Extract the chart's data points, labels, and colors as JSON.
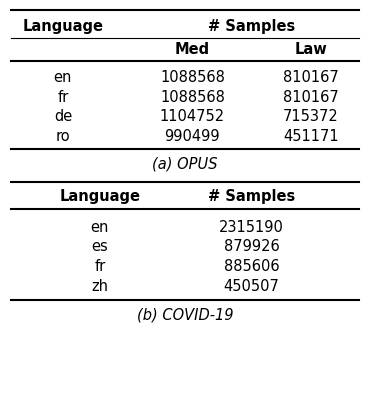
{
  "table1": {
    "header_top": "# Samples",
    "col1_header": "Language",
    "col2_header": "Med",
    "col3_header": "Law",
    "rows": [
      [
        "en",
        "1088568",
        "810167"
      ],
      [
        "fr",
        "1088568",
        "810167"
      ],
      [
        "de",
        "1104752",
        "715372"
      ],
      [
        "ro",
        "990499",
        "451171"
      ]
    ],
    "caption": "(a) OPUS"
  },
  "table2": {
    "col1_header": "Language",
    "col2_header": "# Samples",
    "rows": [
      [
        "en",
        "2315190"
      ],
      [
        "es",
        "879926"
      ],
      [
        "fr",
        "885606"
      ],
      [
        "zh",
        "450507"
      ]
    ],
    "caption": "(b) COVID-19"
  },
  "bg_color": "#ffffff",
  "text_color": "#000000",
  "font_size": 10.5,
  "caption_font_size": 10.5,
  "fig_width": 3.7,
  "fig_height": 4.08,
  "dpi": 100
}
